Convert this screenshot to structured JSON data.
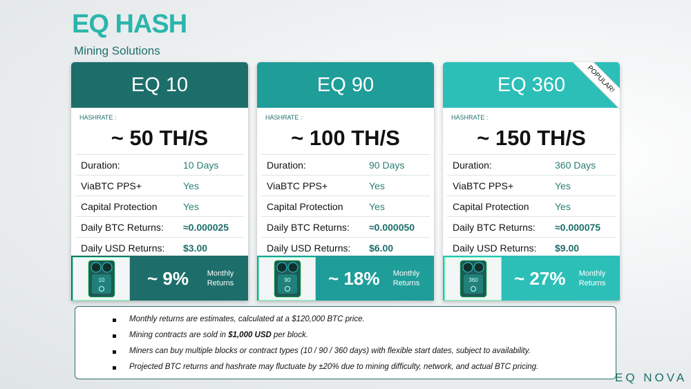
{
  "header": {
    "title": "EQ HASH",
    "subtitle": "Mining Solutions"
  },
  "plans": [
    {
      "name": "EQ 10",
      "hashrate_label": "HASHRATE :",
      "hashrate": "~ 50 TH/S",
      "rows": [
        [
          "Duration:",
          "10 Days"
        ],
        [
          "ViaBTC PPS+",
          "Yes"
        ],
        [
          "Capital Protection",
          "Yes"
        ],
        [
          "Daily BTC Returns:",
          "≈0.000025"
        ],
        [
          "Daily USD Returns:",
          "$3.00"
        ]
      ],
      "chip": "10",
      "returns": "~ 9%",
      "returns_label": "Monthly Returns",
      "color": "#1d6e6b"
    },
    {
      "name": "EQ 90",
      "hashrate_label": "HASHRATE :",
      "hashrate": "~ 100 TH/S",
      "rows": [
        [
          "Duration:",
          "90 Days"
        ],
        [
          "ViaBTC PPS+",
          "Yes"
        ],
        [
          "Capital Protection",
          "Yes"
        ],
        [
          "Daily BTC Returns:",
          "≈0.000050"
        ],
        [
          "Daily USD Returns:",
          "$6.00"
        ]
      ],
      "chip": "90",
      "returns": "~ 18%",
      "returns_label": "Monthly Returns",
      "color": "#1f9d99"
    },
    {
      "name": "EQ 360",
      "hashrate_label": "HASHRATE :",
      "hashrate": "~ 150 TH/S",
      "rows": [
        [
          "Duration:",
          "360 Days"
        ],
        [
          "ViaBTC PPS+",
          "Yes"
        ],
        [
          "Capital Protection",
          "Yes"
        ],
        [
          "Daily BTC Returns:",
          "≈0.000075"
        ],
        [
          "Daily USD Returns:",
          "$9.00"
        ]
      ],
      "chip": "360",
      "returns": "~ 27%",
      "returns_label": "Monthly Returns",
      "color": "#2cbfb8",
      "badge": "POPULAR!"
    }
  ],
  "notes": [
    [
      {
        "text": "Monthly returns are estimates, calculated at a $120,000 BTC price."
      }
    ],
    [
      {
        "text": "Mining contracts are sold in "
      },
      {
        "text": "$1,000 USD",
        "bold": true
      },
      {
        "text": " per block."
      }
    ],
    [
      {
        "text": "Miners can buy multiple blocks or contract types (10 / 90 / 360 days) with flexible start dates, subject to availability."
      }
    ],
    [
      {
        "text": "Projected BTC returns and hashrate may fluctuate by ±20% due to mining difficulty, network, and actual BTC pricing."
      }
    ]
  ],
  "brand": "EQ NOVA"
}
